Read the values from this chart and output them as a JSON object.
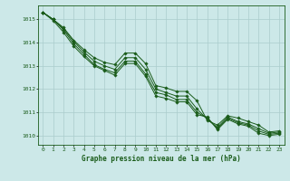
{
  "title": "Graphe pression niveau de la mer (hPa)",
  "background_color": "#cce8e8",
  "grid_color": "#aacccc",
  "line_color": "#1a5c1a",
  "xlim": [
    -0.5,
    23.5
  ],
  "ylim": [
    1009.6,
    1015.6
  ],
  "yticks": [
    1010,
    1011,
    1012,
    1013,
    1014,
    1015
  ],
  "xticks": [
    0,
    1,
    2,
    3,
    4,
    5,
    6,
    7,
    8,
    9,
    10,
    11,
    12,
    13,
    14,
    15,
    16,
    17,
    18,
    19,
    20,
    21,
    22,
    23
  ],
  "series": [
    [
      1015.3,
      1015.0,
      1014.65,
      1014.1,
      1013.7,
      1013.35,
      1013.15,
      1013.05,
      1013.55,
      1013.55,
      1013.1,
      1012.15,
      1012.05,
      1011.9,
      1011.9,
      1011.5,
      1010.65,
      1010.45,
      1010.85,
      1010.75,
      1010.6,
      1010.45,
      1010.15,
      1010.2
    ],
    [
      1015.3,
      1015.0,
      1014.6,
      1014.05,
      1013.6,
      1013.2,
      1013.0,
      1012.85,
      1013.35,
      1013.35,
      1012.85,
      1012.0,
      1011.85,
      1011.7,
      1011.7,
      1011.15,
      1010.7,
      1010.35,
      1010.8,
      1010.6,
      1010.5,
      1010.3,
      1010.1,
      1010.15
    ],
    [
      1015.3,
      1015.0,
      1014.55,
      1013.95,
      1013.5,
      1013.05,
      1012.85,
      1012.7,
      1013.2,
      1013.2,
      1012.65,
      1011.85,
      1011.75,
      1011.55,
      1011.55,
      1011.0,
      1010.75,
      1010.3,
      1010.75,
      1010.55,
      1010.45,
      1010.2,
      1010.05,
      1010.1
    ],
    [
      1015.3,
      1014.95,
      1014.45,
      1013.85,
      1013.4,
      1013.0,
      1012.8,
      1012.6,
      1013.1,
      1013.1,
      1012.55,
      1011.7,
      1011.6,
      1011.45,
      1011.45,
      1010.9,
      1010.8,
      1010.25,
      1010.7,
      1010.5,
      1010.4,
      1010.1,
      1010.0,
      1010.05
    ]
  ],
  "marker": "D",
  "markersize": 1.8,
  "linewidth": 0.7,
  "xlabel_fontsize": 5.5,
  "tick_fontsize": 4.5
}
